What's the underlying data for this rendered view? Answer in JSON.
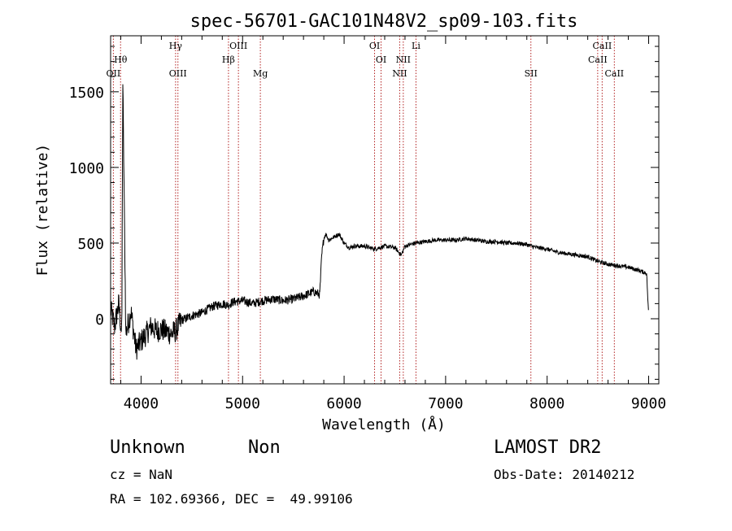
{
  "chart_data": {
    "type": "line",
    "title": "spec-56701-GAC101N48V2_sp09-103.fits",
    "xlabel": "Wavelength (Å)",
    "ylabel": "Flux (relative)",
    "xlim": [
      3700,
      9100
    ],
    "ylim": [
      -430,
      1870
    ],
    "x_ticks": [
      4000,
      5000,
      6000,
      7000,
      8000,
      9000
    ],
    "x_tick_labels": [
      "4000",
      "5000",
      "6000",
      "7000",
      "8000",
      "9000"
    ],
    "y_ticks": [
      0,
      500,
      1000,
      1500
    ],
    "y_tick_labels": [
      "0",
      "500",
      "1000",
      "1500"
    ],
    "grid": false,
    "line_color": "#000000",
    "marker_color": "#b22222",
    "series": [
      {
        "x": [
          3700,
          3740,
          3780,
          3810,
          3820,
          3850,
          3900,
          3950,
          4000,
          4050,
          4100,
          4150,
          4200,
          4300,
          4340,
          4400,
          4500,
          4600,
          4700,
          4800,
          4861,
          4900,
          5000,
          5100,
          5200,
          5300,
          5400,
          5500,
          5600,
          5700,
          5760,
          5780,
          5800,
          5820,
          5850,
          5900,
          5950,
          6000,
          6050,
          6100,
          6200,
          6300,
          6400,
          6500,
          6563,
          6600,
          6700,
          6800,
          6900,
          7000,
          7100,
          7200,
          7300,
          7400,
          7500,
          7600,
          7700,
          7800,
          7900,
          8000,
          8100,
          8200,
          8300,
          8400,
          8500,
          8600,
          8700,
          8800,
          8900,
          8980,
          9000
        ],
        "y": [
          60,
          -50,
          100,
          -120,
          1560,
          -100,
          50,
          -200,
          -150,
          -100,
          -50,
          -80,
          -70,
          -100,
          -80,
          -10,
          20,
          40,
          80,
          100,
          90,
          110,
          120,
          100,
          120,
          130,
          120,
          130,
          150,
          180,
          160,
          420,
          530,
          560,
          520,
          540,
          560,
          500,
          470,
          480,
          480,
          460,
          480,
          470,
          420,
          480,
          500,
          510,
          520,
          520,
          520,
          530,
          520,
          510,
          510,
          500,
          500,
          490,
          470,
          460,
          440,
          430,
          420,
          410,
          380,
          360,
          350,
          340,
          320,
          300,
          20
        ]
      }
    ],
    "lines": [
      {
        "name": "OII",
        "x": 3727,
        "row": 3
      },
      {
        "name": "Hθ",
        "x": 3798,
        "row": 1
      },
      {
        "name": "Hγ",
        "x": 4340,
        "row": 0
      },
      {
        "name": "OIII",
        "x": 4363,
        "row": 3
      },
      {
        "name": "Hβ",
        "x": 4861,
        "row": 2
      },
      {
        "name": "OIII",
        "x": 4959,
        "row": 0
      },
      {
        "name": "Mg",
        "x": 5175,
        "row": 3
      },
      {
        "name": "OI",
        "x": 6300,
        "row": 0
      },
      {
        "name": "OI",
        "x": 6364,
        "row": 2
      },
      {
        "name": "NII",
        "x": 6548,
        "row": 3
      },
      {
        "name": "NII",
        "x": 6583,
        "row": 2
      },
      {
        "name": "Li",
        "x": 6708,
        "row": 0
      },
      {
        "name": "SII",
        "x": 7840,
        "row": 3
      },
      {
        "name": "CaII",
        "x": 8498,
        "row": 2
      },
      {
        "name": "CaII",
        "x": 8542,
        "row": 0
      },
      {
        "name": "CaII",
        "x": 8662,
        "row": 3
      }
    ]
  },
  "info": {
    "object_class": "Unknown",
    "subclass": "Non",
    "survey": "LAMOST DR2",
    "cz": "cz = NaN",
    "obs_date": "Obs-Date: 20140212",
    "coords": "RA = 102.69366, DEC =  49.99106"
  }
}
